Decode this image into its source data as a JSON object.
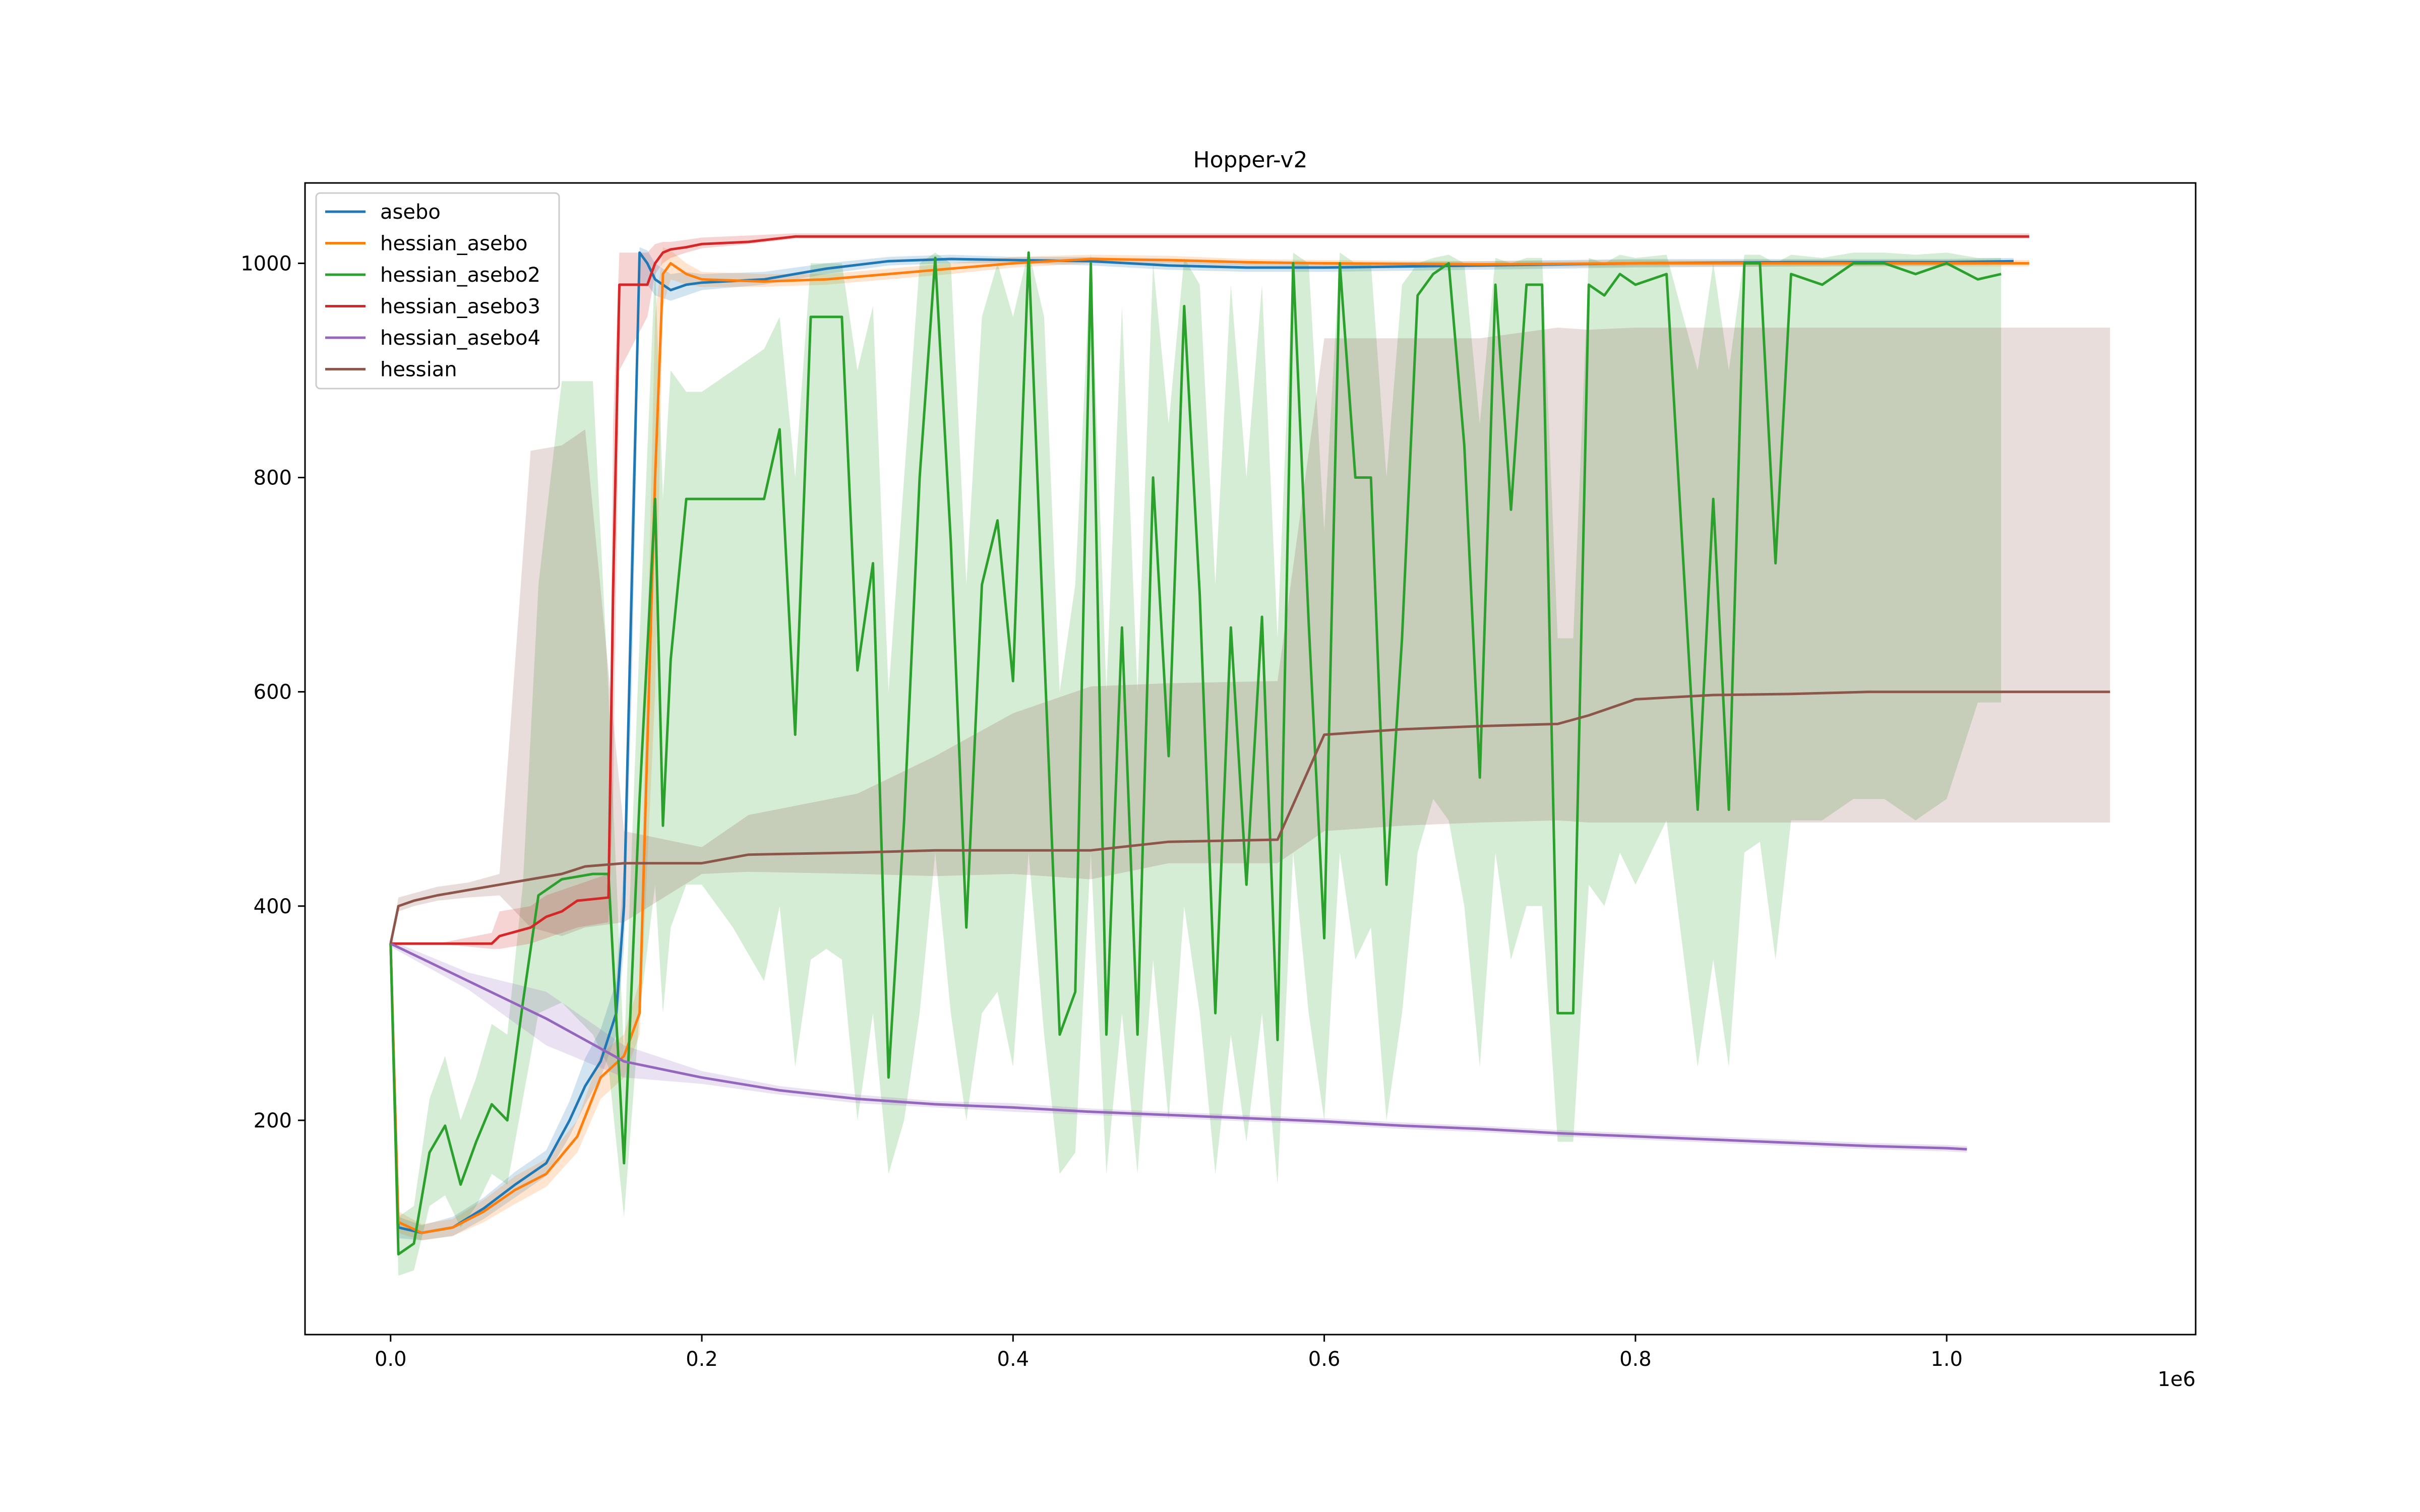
{
  "chart_data": {
    "type": "line",
    "title": "Hopper-v2",
    "xlabel": "",
    "ylabel": "",
    "x_offset_text": "1e6",
    "xlim": [
      -55000,
      1160000
    ],
    "ylim": [
      0,
      1075
    ],
    "x_ticks": [
      0.0,
      0.2,
      0.4,
      0.6,
      0.8,
      1.0
    ],
    "x_tick_labels": [
      "0.0",
      "0.2",
      "0.4",
      "0.6",
      "0.8",
      "1.0"
    ],
    "y_ticks": [
      200,
      400,
      600,
      800,
      1000
    ],
    "y_tick_labels": [
      "200",
      "400",
      "600",
      "800",
      "1000"
    ],
    "grid": false,
    "legend_position": "upper-left",
    "series": [
      {
        "name": "asebo",
        "color": "#1f77b4",
        "x": [
          0,
          5000,
          20000,
          40000,
          60000,
          80000,
          100000,
          115000,
          125000,
          135000,
          145000,
          150000,
          155000,
          160000,
          165000,
          170000,
          180000,
          190000,
          200000,
          240000,
          280000,
          320000,
          360000,
          400000,
          450000,
          500000,
          550000,
          600000,
          700000,
          800000,
          900000,
          1000000,
          1043000
        ],
        "y": [
          365,
          100,
          95,
          100,
          118,
          140,
          160,
          200,
          232,
          255,
          300,
          400,
          700,
          1010,
          1000,
          985,
          975,
          980,
          982,
          985,
          995,
          1002,
          1004,
          1003,
          1002,
          998,
          996,
          996,
          998,
          1000,
          1001,
          1001,
          1002
        ],
        "band_lo": [
          365,
          90,
          88,
          92,
          108,
          128,
          148,
          185,
          215,
          240,
          280,
          360,
          600,
          980,
          980,
          970,
          965,
          970,
          975,
          980,
          990,
          998,
          1000,
          1000,
          998,
          994,
          992,
          992,
          994,
          996,
          997,
          998,
          999
        ],
        "band_hi": [
          365,
          110,
          102,
          110,
          128,
          152,
          172,
          218,
          258,
          285,
          330,
          440,
          780,
          1015,
          1012,
          1000,
          990,
          992,
          990,
          992,
          1000,
          1006,
          1008,
          1006,
          1006,
          1002,
          1000,
          1000,
          1002,
          1004,
          1004,
          1004,
          1005
        ]
      },
      {
        "name": "hessian_asebo",
        "color": "#ff7f0e",
        "x": [
          0,
          5000,
          20000,
          40000,
          60000,
          80000,
          100000,
          120000,
          135000,
          150000,
          160000,
          170000,
          175000,
          180000,
          190000,
          200000,
          240000,
          280000,
          320000,
          360000,
          400000,
          450000,
          500000,
          550000,
          600000,
          700000,
          800000,
          900000,
          1000000,
          1053000
        ],
        "y": [
          365,
          105,
          95,
          100,
          115,
          135,
          150,
          185,
          240,
          260,
          300,
          800,
          990,
          1000,
          990,
          985,
          983,
          985,
          990,
          995,
          1000,
          1004,
          1003,
          1001,
          1000,
          999,
          1000,
          1000,
          1000,
          1000
        ],
        "band_lo": [
          365,
          95,
          88,
          92,
          105,
          122,
          138,
          170,
          220,
          240,
          280,
          600,
          960,
          985,
          980,
          978,
          978,
          980,
          985,
          990,
          996,
          1000,
          1000,
          998,
          997,
          996,
          997,
          997,
          997,
          997
        ],
        "band_hi": [
          365,
          115,
          103,
          108,
          126,
          148,
          164,
          200,
          262,
          280,
          330,
          950,
          1015,
          1012,
          1000,
          992,
          990,
          990,
          995,
          1000,
          1006,
          1008,
          1007,
          1004,
          1003,
          1002,
          1003,
          1003,
          1003,
          1003
        ]
      },
      {
        "name": "hessian_asebo2",
        "color": "#2ca02c",
        "x": [
          0,
          5000,
          15000,
          25000,
          35000,
          45000,
          55000,
          65000,
          75000,
          85000,
          95000,
          110000,
          130000,
          140000,
          150000,
          160000,
          170000,
          175000,
          180000,
          190000,
          200000,
          220000,
          240000,
          250000,
          260000,
          270000,
          280000,
          290000,
          300000,
          310000,
          320000,
          330000,
          340000,
          350000,
          360000,
          370000,
          380000,
          390000,
          400000,
          410000,
          420000,
          430000,
          440000,
          450000,
          460000,
          470000,
          480000,
          490000,
          500000,
          510000,
          520000,
          530000,
          540000,
          550000,
          560000,
          570000,
          580000,
          590000,
          600000,
          610000,
          620000,
          630000,
          640000,
          650000,
          660000,
          670000,
          680000,
          690000,
          700000,
          710000,
          720000,
          730000,
          740000,
          750000,
          760000,
          770000,
          780000,
          790000,
          800000,
          820000,
          840000,
          850000,
          860000,
          870000,
          880000,
          890000,
          900000,
          920000,
          940000,
          960000,
          980000,
          1000000,
          1020000,
          1035000
        ],
        "y": [
          365,
          75,
          85,
          170,
          195,
          140,
          180,
          215,
          200,
          310,
          410,
          425,
          430,
          430,
          160,
          500,
          780,
          475,
          630,
          780,
          780,
          780,
          780,
          845,
          560,
          950,
          950,
          950,
          620,
          720,
          240,
          480,
          800,
          1005,
          740,
          380,
          700,
          760,
          610,
          1010,
          640,
          280,
          320,
          1000,
          280,
          660,
          280,
          800,
          540,
          960,
          690,
          300,
          660,
          420,
          670,
          275,
          1000,
          665,
          370,
          1000,
          800,
          800,
          420,
          650,
          970,
          990,
          1000,
          830,
          520,
          980,
          770,
          980,
          980,
          300,
          300,
          980,
          970,
          990,
          980,
          990,
          490,
          780,
          490,
          1000,
          1000,
          720,
          990,
          980,
          1000,
          1000,
          990,
          1000,
          985,
          990
        ],
        "band_lo": [
          365,
          55,
          60,
          120,
          130,
          100,
          120,
          150,
          140,
          220,
          300,
          310,
          280,
          250,
          110,
          300,
          420,
          300,
          380,
          420,
          420,
          380,
          330,
          400,
          250,
          350,
          360,
          350,
          200,
          300,
          150,
          200,
          300,
          450,
          300,
          200,
          300,
          320,
          250,
          450,
          280,
          150,
          170,
          450,
          150,
          300,
          150,
          350,
          200,
          400,
          300,
          150,
          280,
          180,
          300,
          140,
          450,
          300,
          200,
          450,
          350,
          380,
          200,
          300,
          450,
          500,
          480,
          400,
          250,
          450,
          350,
          400,
          400,
          180,
          180,
          420,
          400,
          450,
          420,
          480,
          250,
          350,
          250,
          450,
          460,
          350,
          480,
          480,
          500,
          500,
          480,
          500,
          590,
          590
        ],
        "band_hi": [
          365,
          110,
          120,
          220,
          260,
          200,
          240,
          290,
          280,
          420,
          700,
          890,
          890,
          600,
          260,
          650,
          1000,
          780,
          900,
          880,
          880,
          900,
          920,
          950,
          800,
          1000,
          1000,
          1000,
          900,
          960,
          600,
          800,
          1000,
          1010,
          1000,
          700,
          950,
          1000,
          950,
          1012,
          950,
          600,
          700,
          1010,
          600,
          960,
          600,
          1000,
          850,
          1005,
          980,
          700,
          980,
          800,
          980,
          650,
          1010,
          1000,
          750,
          1010,
          1000,
          1000,
          800,
          980,
          1000,
          1005,
          1008,
          1000,
          850,
          1005,
          1000,
          1005,
          1005,
          650,
          650,
          1005,
          1000,
          1008,
          1005,
          1008,
          900,
          1000,
          900,
          1008,
          1008,
          1000,
          1008,
          1005,
          1010,
          1010,
          1008,
          1010,
          1005,
          1005
        ]
      },
      {
        "name": "hessian_asebo3",
        "color": "#d62728",
        "x": [
          0,
          30000,
          65000,
          70000,
          90000,
          100000,
          110000,
          120000,
          140000,
          143000,
          147000,
          165000,
          170000,
          175000,
          180000,
          190000,
          200000,
          230000,
          260000,
          300000,
          400000,
          500000,
          600000,
          700000,
          800000,
          900000,
          1000000,
          1053000
        ],
        "y": [
          365,
          365,
          365,
          372,
          380,
          390,
          395,
          405,
          408,
          695,
          980,
          980,
          1000,
          1010,
          1013,
          1015,
          1018,
          1020,
          1025,
          1025,
          1025,
          1025,
          1025,
          1025,
          1025,
          1025,
          1025,
          1025
        ],
        "band_lo": [
          365,
          365,
          360,
          360,
          365,
          370,
          375,
          380,
          385,
          500,
          900,
          950,
          990,
          1000,
          1005,
          1010,
          1014,
          1018,
          1023,
          1023,
          1023,
          1023,
          1023,
          1023,
          1023,
          1023,
          1023,
          1023
        ],
        "band_hi": [
          365,
          365,
          375,
          395,
          400,
          410,
          415,
          420,
          430,
          850,
          1010,
          1010,
          1018,
          1020,
          1020,
          1022,
          1024,
          1026,
          1028,
          1028,
          1028,
          1028,
          1028,
          1028,
          1028,
          1028,
          1028,
          1028
        ]
      },
      {
        "name": "hessian_asebo4",
        "color": "#9467bd",
        "x": [
          0,
          50000,
          100000,
          150000,
          200000,
          250000,
          300000,
          350000,
          400000,
          450000,
          500000,
          550000,
          600000,
          650000,
          700000,
          750000,
          800000,
          850000,
          900000,
          950000,
          1000000,
          1013000
        ],
        "y": [
          365,
          330,
          295,
          255,
          240,
          228,
          220,
          215,
          212,
          208,
          205,
          202,
          199,
          195,
          192,
          188,
          185,
          182,
          179,
          176,
          174,
          173
        ],
        "band_lo": [
          362,
          322,
          270,
          240,
          234,
          224,
          216,
          212,
          208,
          205,
          202,
          199,
          196,
          192,
          189,
          185,
          182,
          179,
          176,
          173,
          171,
          170
        ],
        "band_hi": [
          368,
          338,
          320,
          270,
          246,
          232,
          224,
          218,
          216,
          211,
          208,
          205,
          202,
          198,
          195,
          191,
          188,
          185,
          182,
          179,
          177,
          176
        ]
      },
      {
        "name": "hessian",
        "color": "#8c564b",
        "x": [
          0,
          5000,
          15000,
          30000,
          50000,
          70000,
          90000,
          110000,
          125000,
          150000,
          200000,
          230000,
          300000,
          350000,
          400000,
          450000,
          500000,
          570000,
          600000,
          650000,
          700000,
          750000,
          770000,
          800000,
          850000,
          900000,
          950000,
          1000000,
          1050000,
          1105000
        ],
        "y": [
          365,
          400,
          405,
          410,
          415,
          420,
          425,
          430,
          437,
          440,
          440,
          448,
          450,
          452,
          452,
          452,
          460,
          462,
          560,
          565,
          568,
          570,
          578,
          593,
          597,
          598,
          600,
          600,
          600,
          600
        ],
        "band_lo": [
          365,
          395,
          400,
          405,
          408,
          410,
          380,
          372,
          380,
          385,
          430,
          432,
          430,
          428,
          430,
          425,
          440,
          440,
          470,
          475,
          478,
          480,
          478,
          478,
          478,
          478,
          478,
          478,
          478,
          478
        ],
        "band_hi": [
          365,
          408,
          412,
          418,
          422,
          430,
          825,
          830,
          845,
          470,
          455,
          485,
          505,
          540,
          580,
          605,
          608,
          610,
          930,
          930,
          930,
          940,
          938,
          940,
          940,
          940,
          940,
          940,
          940,
          940
        ]
      }
    ]
  }
}
